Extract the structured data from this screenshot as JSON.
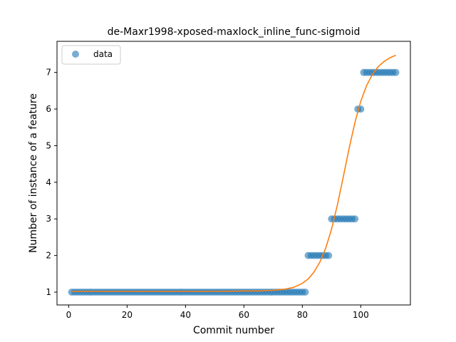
{
  "chart_data": {
    "type": "scatter",
    "title": "de-Maxr1998-xposed-maxlock_inline_func-sigmoid",
    "xlabel": "Commit number",
    "ylabel": "Number of instance of a feature",
    "xlim": [
      -4,
      117
    ],
    "ylim": [
      0.65,
      7.85
    ],
    "xticks": [
      0,
      20,
      40,
      60,
      80,
      100
    ],
    "yticks": [
      1,
      2,
      3,
      4,
      5,
      6,
      7
    ],
    "legend": {
      "placement": "top-left",
      "entries": [
        "data"
      ]
    },
    "grid": false,
    "colors": {
      "data": "#1f77b4",
      "fit": "#ff7f0e"
    },
    "series": [
      {
        "name": "data",
        "kind": "scatter",
        "points": [
          [
            1,
            1
          ],
          [
            2,
            1
          ],
          [
            3,
            1
          ],
          [
            4,
            1
          ],
          [
            5,
            1
          ],
          [
            6,
            1
          ],
          [
            7,
            1
          ],
          [
            8,
            1
          ],
          [
            9,
            1
          ],
          [
            10,
            1
          ],
          [
            11,
            1
          ],
          [
            12,
            1
          ],
          [
            13,
            1
          ],
          [
            14,
            1
          ],
          [
            15,
            1
          ],
          [
            16,
            1
          ],
          [
            17,
            1
          ],
          [
            18,
            1
          ],
          [
            19,
            1
          ],
          [
            20,
            1
          ],
          [
            21,
            1
          ],
          [
            22,
            1
          ],
          [
            23,
            1
          ],
          [
            24,
            1
          ],
          [
            25,
            1
          ],
          [
            26,
            1
          ],
          [
            27,
            1
          ],
          [
            28,
            1
          ],
          [
            29,
            1
          ],
          [
            30,
            1
          ],
          [
            31,
            1
          ],
          [
            32,
            1
          ],
          [
            33,
            1
          ],
          [
            34,
            1
          ],
          [
            35,
            1
          ],
          [
            36,
            1
          ],
          [
            37,
            1
          ],
          [
            38,
            1
          ],
          [
            39,
            1
          ],
          [
            40,
            1
          ],
          [
            41,
            1
          ],
          [
            42,
            1
          ],
          [
            43,
            1
          ],
          [
            44,
            1
          ],
          [
            45,
            1
          ],
          [
            46,
            1
          ],
          [
            47,
            1
          ],
          [
            48,
            1
          ],
          [
            49,
            1
          ],
          [
            50,
            1
          ],
          [
            51,
            1
          ],
          [
            52,
            1
          ],
          [
            53,
            1
          ],
          [
            54,
            1
          ],
          [
            55,
            1
          ],
          [
            56,
            1
          ],
          [
            57,
            1
          ],
          [
            58,
            1
          ],
          [
            59,
            1
          ],
          [
            60,
            1
          ],
          [
            61,
            1
          ],
          [
            62,
            1
          ],
          [
            63,
            1
          ],
          [
            64,
            1
          ],
          [
            65,
            1
          ],
          [
            66,
            1
          ],
          [
            67,
            1
          ],
          [
            68,
            1
          ],
          [
            69,
            1
          ],
          [
            70,
            1
          ],
          [
            71,
            1
          ],
          [
            72,
            1
          ],
          [
            73,
            1
          ],
          [
            74,
            1
          ],
          [
            75,
            1
          ],
          [
            76,
            1
          ],
          [
            77,
            1
          ],
          [
            78,
            1
          ],
          [
            79,
            1
          ],
          [
            80,
            1
          ],
          [
            81,
            1
          ],
          [
            82,
            2
          ],
          [
            83,
            2
          ],
          [
            84,
            2
          ],
          [
            85,
            2
          ],
          [
            86,
            2
          ],
          [
            87,
            2
          ],
          [
            88,
            2
          ],
          [
            89,
            2
          ],
          [
            90,
            3
          ],
          [
            91,
            3
          ],
          [
            92,
            3
          ],
          [
            93,
            3
          ],
          [
            94,
            3
          ],
          [
            95,
            3
          ],
          [
            96,
            3
          ],
          [
            97,
            3
          ],
          [
            98,
            3
          ],
          [
            99,
            6
          ],
          [
            100,
            6
          ],
          [
            101,
            7
          ],
          [
            102,
            7
          ],
          [
            103,
            7
          ],
          [
            104,
            7
          ],
          [
            105,
            7
          ],
          [
            106,
            7
          ],
          [
            107,
            7
          ],
          [
            108,
            7
          ],
          [
            109,
            7
          ],
          [
            110,
            7
          ],
          [
            111,
            7
          ],
          [
            112,
            7
          ]
        ]
      },
      {
        "kind": "line",
        "points": [
          [
            1,
            1.02
          ],
          [
            10,
            1.02
          ],
          [
            20,
            1.02
          ],
          [
            30,
            1.02
          ],
          [
            40,
            1.02
          ],
          [
            50,
            1.02
          ],
          [
            60,
            1.03
          ],
          [
            65,
            1.03
          ],
          [
            70,
            1.05
          ],
          [
            74,
            1.08
          ],
          [
            77,
            1.13
          ],
          [
            80,
            1.24
          ],
          [
            82,
            1.36
          ],
          [
            84,
            1.55
          ],
          [
            86,
            1.82
          ],
          [
            88,
            2.2
          ],
          [
            90,
            2.72
          ],
          [
            92,
            3.38
          ],
          [
            94,
            4.14
          ],
          [
            96,
            4.92
          ],
          [
            98,
            5.63
          ],
          [
            100,
            6.21
          ],
          [
            102,
            6.64
          ],
          [
            104,
            6.95
          ],
          [
            106,
            7.16
          ],
          [
            108,
            7.3
          ],
          [
            110,
            7.4
          ],
          [
            112,
            7.47
          ]
        ]
      }
    ]
  }
}
